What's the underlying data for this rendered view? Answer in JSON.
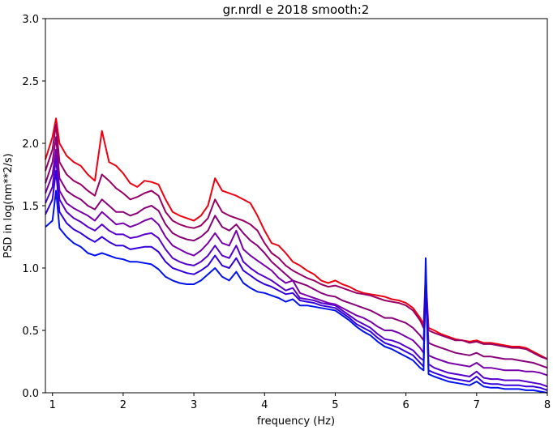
{
  "chart_data": {
    "type": "line",
    "title": "gr.nrdl e 2018 smooth:2",
    "xlabel": "frequency (Hz)",
    "ylabel": "PSD in log(nm**2/s)",
    "xlim": [
      0.9,
      8
    ],
    "ylim": [
      0,
      3
    ],
    "xticks": [
      1,
      2,
      3,
      4,
      5,
      6,
      7,
      8
    ],
    "yticks": [
      0.0,
      0.5,
      1.0,
      1.5,
      2.0,
      2.5,
      3.0
    ],
    "xtick_labels": [
      "1",
      "2",
      "3",
      "4",
      "5",
      "6",
      "7",
      "8"
    ],
    "ytick_labels": [
      "0.0",
      "0.5",
      "1.0",
      "1.5",
      "2.0",
      "2.5",
      "3.0"
    ],
    "grid": false,
    "legend": "none",
    "series": [
      {
        "color": "#ee0011",
        "x": [
          0.9,
          1.0,
          1.05,
          1.1,
          1.2,
          1.3,
          1.4,
          1.5,
          1.6,
          1.7,
          1.8,
          1.9,
          2.0,
          2.1,
          2.2,
          2.3,
          2.4,
          2.5,
          2.6,
          2.7,
          2.8,
          2.9,
          3.0,
          3.1,
          3.2,
          3.3,
          3.4,
          3.5,
          3.6,
          3.7,
          3.8,
          3.9,
          4.0,
          4.1,
          4.2,
          4.3,
          4.4,
          4.5,
          4.6,
          4.7,
          4.8,
          4.9,
          5.0,
          5.1,
          5.2,
          5.3,
          5.4,
          5.5,
          5.6,
          5.7,
          5.8,
          5.9,
          6.0,
          6.1,
          6.2,
          6.25,
          6.28,
          6.32,
          6.4,
          6.5,
          6.6,
          6.7,
          6.8,
          6.9,
          7.0,
          7.1,
          7.2,
          7.3,
          7.4,
          7.5,
          7.6,
          7.7,
          7.8,
          7.9,
          8.0
        ],
        "y": [
          1.87,
          2.05,
          2.2,
          2.0,
          1.9,
          1.85,
          1.82,
          1.75,
          1.7,
          2.1,
          1.85,
          1.82,
          1.76,
          1.68,
          1.65,
          1.7,
          1.69,
          1.67,
          1.55,
          1.45,
          1.42,
          1.4,
          1.38,
          1.42,
          1.5,
          1.72,
          1.62,
          1.6,
          1.58,
          1.55,
          1.52,
          1.42,
          1.3,
          1.2,
          1.18,
          1.12,
          1.05,
          1.02,
          0.98,
          0.95,
          0.9,
          0.88,
          0.9,
          0.87,
          0.85,
          0.82,
          0.8,
          0.79,
          0.78,
          0.77,
          0.75,
          0.74,
          0.72,
          0.68,
          0.6,
          0.55,
          0.95,
          0.52,
          0.5,
          0.47,
          0.45,
          0.43,
          0.42,
          0.41,
          0.42,
          0.4,
          0.4,
          0.39,
          0.38,
          0.37,
          0.37,
          0.36,
          0.33,
          0.3,
          0.27
        ]
      },
      {
        "color": "#990066",
        "x": [
          0.9,
          1.0,
          1.05,
          1.1,
          1.2,
          1.3,
          1.4,
          1.5,
          1.6,
          1.7,
          1.8,
          1.9,
          2.0,
          2.1,
          2.2,
          2.3,
          2.4,
          2.5,
          2.6,
          2.7,
          2.8,
          2.9,
          3.0,
          3.1,
          3.2,
          3.3,
          3.4,
          3.5,
          3.6,
          3.7,
          3.8,
          3.9,
          4.0,
          4.1,
          4.2,
          4.3,
          4.4,
          4.5,
          4.6,
          4.7,
          4.8,
          4.9,
          5.0,
          5.1,
          5.2,
          5.3,
          5.4,
          5.5,
          5.6,
          5.7,
          5.8,
          5.9,
          6.0,
          6.1,
          6.2,
          6.25,
          6.28,
          6.32,
          6.4,
          6.5,
          6.6,
          6.7,
          6.8,
          6.9,
          7.0,
          7.1,
          7.2,
          7.3,
          7.4,
          7.5,
          7.6,
          7.7,
          7.8,
          7.9,
          8.0
        ],
        "y": [
          1.78,
          1.95,
          2.15,
          1.85,
          1.75,
          1.7,
          1.67,
          1.62,
          1.58,
          1.75,
          1.7,
          1.64,
          1.6,
          1.55,
          1.57,
          1.6,
          1.62,
          1.58,
          1.45,
          1.38,
          1.35,
          1.33,
          1.32,
          1.34,
          1.4,
          1.55,
          1.45,
          1.42,
          1.4,
          1.38,
          1.35,
          1.3,
          1.2,
          1.12,
          1.08,
          1.02,
          0.98,
          0.95,
          0.92,
          0.9,
          0.87,
          0.85,
          0.86,
          0.84,
          0.82,
          0.8,
          0.79,
          0.78,
          0.76,
          0.74,
          0.73,
          0.72,
          0.7,
          0.66,
          0.58,
          0.52,
          0.9,
          0.5,
          0.48,
          0.46,
          0.44,
          0.42,
          0.42,
          0.4,
          0.41,
          0.39,
          0.39,
          0.38,
          0.37,
          0.36,
          0.36,
          0.35,
          0.32,
          0.29,
          0.27
        ]
      },
      {
        "color": "#880077",
        "x": [
          0.9,
          1.0,
          1.05,
          1.1,
          1.2,
          1.3,
          1.4,
          1.5,
          1.6,
          1.7,
          1.8,
          1.9,
          2.0,
          2.1,
          2.2,
          2.3,
          2.4,
          2.5,
          2.6,
          2.7,
          2.8,
          2.9,
          3.0,
          3.1,
          3.2,
          3.3,
          3.4,
          3.5,
          3.6,
          3.7,
          3.8,
          3.9,
          4.0,
          4.1,
          4.2,
          4.3,
          4.4,
          4.5,
          4.6,
          4.7,
          4.8,
          4.9,
          5.0,
          5.1,
          5.2,
          5.3,
          5.4,
          5.5,
          5.6,
          5.7,
          5.8,
          5.9,
          6.0,
          6.1,
          6.2,
          6.25,
          6.28,
          6.32,
          6.4,
          6.5,
          6.6,
          6.7,
          6.8,
          6.9,
          7.0,
          7.1,
          7.2,
          7.3,
          7.4,
          7.5,
          7.6,
          7.7,
          7.8,
          7.9,
          8.0
        ],
        "y": [
          1.68,
          1.85,
          2.05,
          1.72,
          1.62,
          1.58,
          1.55,
          1.5,
          1.47,
          1.55,
          1.5,
          1.45,
          1.45,
          1.42,
          1.44,
          1.48,
          1.5,
          1.46,
          1.35,
          1.28,
          1.25,
          1.23,
          1.22,
          1.25,
          1.3,
          1.42,
          1.33,
          1.3,
          1.35,
          1.28,
          1.22,
          1.18,
          1.12,
          1.05,
          1.0,
          0.95,
          0.9,
          0.88,
          0.86,
          0.83,
          0.8,
          0.78,
          0.77,
          0.74,
          0.72,
          0.7,
          0.68,
          0.66,
          0.63,
          0.6,
          0.6,
          0.58,
          0.56,
          0.52,
          0.46,
          0.42,
          0.85,
          0.4,
          0.38,
          0.36,
          0.34,
          0.32,
          0.31,
          0.3,
          0.32,
          0.29,
          0.29,
          0.28,
          0.27,
          0.27,
          0.26,
          0.25,
          0.24,
          0.22,
          0.2
        ]
      },
      {
        "color": "#7700aa",
        "x": [
          0.9,
          1.0,
          1.05,
          1.1,
          1.2,
          1.3,
          1.4,
          1.5,
          1.6,
          1.7,
          1.8,
          1.9,
          2.0,
          2.1,
          2.2,
          2.3,
          2.4,
          2.5,
          2.6,
          2.7,
          2.8,
          2.9,
          3.0,
          3.1,
          3.2,
          3.3,
          3.4,
          3.5,
          3.6,
          3.7,
          3.8,
          3.9,
          4.0,
          4.1,
          4.2,
          4.3,
          4.4,
          4.5,
          4.6,
          4.7,
          4.8,
          4.9,
          5.0,
          5.1,
          5.2,
          5.3,
          5.4,
          5.5,
          5.6,
          5.7,
          5.8,
          5.9,
          6.0,
          6.1,
          6.2,
          6.25,
          6.28,
          6.32,
          6.4,
          6.5,
          6.6,
          6.7,
          6.8,
          6.9,
          7.0,
          7.1,
          7.2,
          7.3,
          7.4,
          7.5,
          7.6,
          7.7,
          7.8,
          7.9,
          8.0
        ],
        "y": [
          1.6,
          1.75,
          1.95,
          1.62,
          1.52,
          1.48,
          1.45,
          1.42,
          1.38,
          1.45,
          1.4,
          1.35,
          1.36,
          1.33,
          1.35,
          1.38,
          1.4,
          1.35,
          1.25,
          1.18,
          1.15,
          1.12,
          1.1,
          1.14,
          1.2,
          1.28,
          1.2,
          1.18,
          1.3,
          1.15,
          1.1,
          1.06,
          1.02,
          0.98,
          0.92,
          0.88,
          0.9,
          0.8,
          0.78,
          0.76,
          0.74,
          0.72,
          0.71,
          0.68,
          0.65,
          0.62,
          0.6,
          0.57,
          0.53,
          0.5,
          0.5,
          0.48,
          0.45,
          0.42,
          0.36,
          0.32,
          0.85,
          0.3,
          0.28,
          0.26,
          0.24,
          0.23,
          0.22,
          0.21,
          0.24,
          0.2,
          0.2,
          0.19,
          0.18,
          0.18,
          0.18,
          0.17,
          0.17,
          0.16,
          0.14
        ]
      },
      {
        "color": "#5500cc",
        "x": [
          0.9,
          1.0,
          1.05,
          1.1,
          1.2,
          1.3,
          1.4,
          1.5,
          1.6,
          1.7,
          1.8,
          1.9,
          2.0,
          2.1,
          2.2,
          2.3,
          2.4,
          2.5,
          2.6,
          2.7,
          2.8,
          2.9,
          3.0,
          3.1,
          3.2,
          3.3,
          3.4,
          3.5,
          3.6,
          3.7,
          3.8,
          3.9,
          4.0,
          4.1,
          4.2,
          4.3,
          4.4,
          4.5,
          4.6,
          4.7,
          4.8,
          4.9,
          5.0,
          5.1,
          5.2,
          5.3,
          5.4,
          5.5,
          5.6,
          5.7,
          5.8,
          5.9,
          6.0,
          6.1,
          6.2,
          6.25,
          6.28,
          6.32,
          6.4,
          6.5,
          6.6,
          6.7,
          6.8,
          6.9,
          7.0,
          7.1,
          7.2,
          7.3,
          7.4,
          7.5,
          7.6,
          7.7,
          7.8,
          7.9,
          8.0
        ],
        "y": [
          1.52,
          1.65,
          1.88,
          1.55,
          1.45,
          1.4,
          1.37,
          1.33,
          1.3,
          1.35,
          1.3,
          1.27,
          1.27,
          1.24,
          1.25,
          1.27,
          1.28,
          1.24,
          1.15,
          1.08,
          1.05,
          1.03,
          1.02,
          1.05,
          1.1,
          1.18,
          1.1,
          1.08,
          1.18,
          1.05,
          1.0,
          0.96,
          0.93,
          0.9,
          0.86,
          0.82,
          0.84,
          0.76,
          0.75,
          0.74,
          0.72,
          0.71,
          0.7,
          0.66,
          0.62,
          0.58,
          0.55,
          0.52,
          0.47,
          0.43,
          0.42,
          0.4,
          0.37,
          0.34,
          0.28,
          0.26,
          0.85,
          0.23,
          0.2,
          0.18,
          0.16,
          0.15,
          0.14,
          0.13,
          0.17,
          0.12,
          0.11,
          0.11,
          0.1,
          0.1,
          0.1,
          0.09,
          0.08,
          0.07,
          0.05
        ]
      },
      {
        "color": "#3300dd",
        "x": [
          0.9,
          1.0,
          1.05,
          1.1,
          1.2,
          1.3,
          1.4,
          1.5,
          1.6,
          1.7,
          1.8,
          1.9,
          2.0,
          2.1,
          2.2,
          2.3,
          2.4,
          2.5,
          2.6,
          2.7,
          2.8,
          2.9,
          3.0,
          3.1,
          3.2,
          3.3,
          3.4,
          3.5,
          3.6,
          3.7,
          3.8,
          3.9,
          4.0,
          4.1,
          4.2,
          4.3,
          4.4,
          4.5,
          4.6,
          4.7,
          4.8,
          4.9,
          5.0,
          5.1,
          5.2,
          5.3,
          5.4,
          5.5,
          5.6,
          5.7,
          5.8,
          5.9,
          6.0,
          6.1,
          6.2,
          6.25,
          6.28,
          6.32,
          6.4,
          6.5,
          6.6,
          6.7,
          6.8,
          6.9,
          7.0,
          7.1,
          7.2,
          7.3,
          7.4,
          7.5,
          7.6,
          7.7,
          7.8,
          7.9,
          8.0
        ],
        "y": [
          1.43,
          1.55,
          1.78,
          1.45,
          1.36,
          1.31,
          1.28,
          1.24,
          1.21,
          1.25,
          1.21,
          1.18,
          1.18,
          1.15,
          1.16,
          1.17,
          1.17,
          1.13,
          1.05,
          1.0,
          0.98,
          0.96,
          0.95,
          0.98,
          1.02,
          1.1,
          1.02,
          1.0,
          1.08,
          0.98,
          0.94,
          0.9,
          0.87,
          0.85,
          0.82,
          0.79,
          0.8,
          0.74,
          0.73,
          0.72,
          0.7,
          0.69,
          0.68,
          0.64,
          0.6,
          0.55,
          0.52,
          0.49,
          0.44,
          0.4,
          0.38,
          0.36,
          0.33,
          0.3,
          0.24,
          0.21,
          0.95,
          0.18,
          0.16,
          0.14,
          0.12,
          0.11,
          0.1,
          0.09,
          0.13,
          0.08,
          0.07,
          0.07,
          0.06,
          0.06,
          0.06,
          0.05,
          0.05,
          0.04,
          0.02
        ]
      },
      {
        "color": "#0011ee",
        "x": [
          0.9,
          1.0,
          1.05,
          1.1,
          1.2,
          1.3,
          1.4,
          1.5,
          1.6,
          1.7,
          1.8,
          1.9,
          2.0,
          2.1,
          2.2,
          2.3,
          2.4,
          2.5,
          2.6,
          2.7,
          2.8,
          2.9,
          3.0,
          3.1,
          3.2,
          3.3,
          3.4,
          3.5,
          3.6,
          3.7,
          3.8,
          3.9,
          4.0,
          4.1,
          4.2,
          4.3,
          4.4,
          4.5,
          4.6,
          4.7,
          4.8,
          4.9,
          5.0,
          5.1,
          5.2,
          5.3,
          5.4,
          5.5,
          5.6,
          5.7,
          5.8,
          5.9,
          6.0,
          6.1,
          6.2,
          6.25,
          6.28,
          6.32,
          6.4,
          6.5,
          6.6,
          6.7,
          6.8,
          6.9,
          7.0,
          7.1,
          7.2,
          7.3,
          7.4,
          7.5,
          7.6,
          7.7,
          7.8,
          7.9,
          8.0
        ],
        "y": [
          1.33,
          1.38,
          1.62,
          1.32,
          1.25,
          1.2,
          1.17,
          1.12,
          1.1,
          1.12,
          1.1,
          1.08,
          1.07,
          1.05,
          1.05,
          1.04,
          1.03,
          0.99,
          0.93,
          0.9,
          0.88,
          0.87,
          0.87,
          0.9,
          0.95,
          1.0,
          0.93,
          0.9,
          0.97,
          0.88,
          0.84,
          0.81,
          0.8,
          0.78,
          0.76,
          0.73,
          0.75,
          0.7,
          0.7,
          0.69,
          0.68,
          0.67,
          0.66,
          0.62,
          0.58,
          0.53,
          0.49,
          0.46,
          0.41,
          0.37,
          0.35,
          0.32,
          0.29,
          0.26,
          0.2,
          0.18,
          1.08,
          0.15,
          0.13,
          0.11,
          0.09,
          0.08,
          0.07,
          0.06,
          0.09,
          0.05,
          0.04,
          0.04,
          0.03,
          0.03,
          0.03,
          0.02,
          0.02,
          0.01,
          0.0
        ]
      }
    ]
  }
}
